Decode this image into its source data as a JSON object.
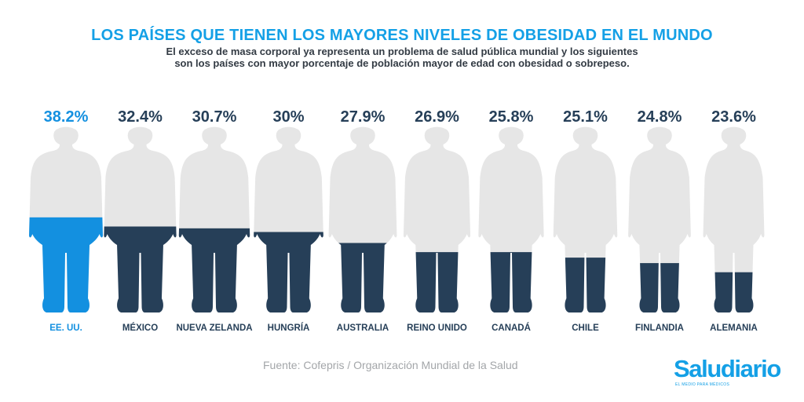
{
  "header": {
    "title": "LOS PAÍSES QUE TIENEN LOS MAYORES NIVELES DE OBESIDAD EN EL MUNDO",
    "subtitle_line1": "El exceso de masa corporal ya representa un problema de salud pública mundial y los siguientes",
    "subtitle_line2": "son los países con mayor porcentaje de población mayor de edad con obesidad o sobrepeso."
  },
  "colors": {
    "highlight": "#1390e0",
    "fill": "#263f58",
    "silhouette": "#e6e6e6",
    "value_highlight": "#1390e0",
    "value_default": "#263f58"
  },
  "chart_data": {
    "type": "bar",
    "title": "LOS PAÍSES QUE TIENEN LOS MAYORES NIVELES DE OBESIDAD EN EL MUNDO",
    "xlabel": "",
    "ylabel": "",
    "categories": [
      "EE. UU.",
      "MÉXICO",
      "NUEVA ZELANDA",
      "HUNGRÍA",
      "AUSTRALIA",
      "REINO UNIDO",
      "CANADÁ",
      "CHILE",
      "FINLANDIA",
      "ALEMANIA"
    ],
    "values": [
      38.2,
      32.4,
      30.7,
      30,
      27.9,
      26.9,
      25.8,
      25.1,
      24.8,
      23.6
    ],
    "value_labels": [
      "38.2%",
      "32.4%",
      "30.7%",
      "30%",
      "27.9%",
      "26.9%",
      "25.8%",
      "25.1%",
      "24.8%",
      "23.6%"
    ],
    "fill_fraction": [
      0.52,
      0.47,
      0.46,
      0.44,
      0.38,
      0.33,
      0.33,
      0.3,
      0.27,
      0.22
    ],
    "highlight_index": 0,
    "mark": "human silhouette filled from the bottom"
  },
  "footer": {
    "source": "Fuente: Cofepris / Organización Mundial de la Salud",
    "logo": "Saludiario",
    "logo_tagline": "EL MEDIO PARA MÉDICOS"
  }
}
